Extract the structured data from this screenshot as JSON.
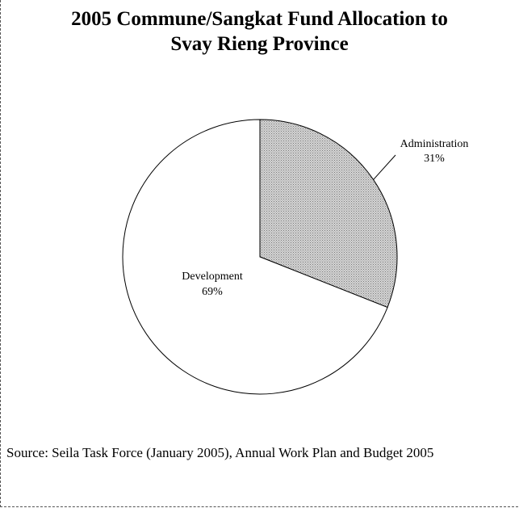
{
  "chart_data": {
    "type": "pie",
    "title": "2005 Commune/Sangkat Fund Allocation to Svay Rieng Province",
    "title_lines": [
      "2005 Commune/Sangkat Fund Allocation to",
      "Svay Rieng Province"
    ],
    "slices": [
      {
        "label": "Administration",
        "value": 31,
        "value_label": "31%",
        "color": "#bdbdbd",
        "pattern": "dotted"
      },
      {
        "label": "Development",
        "value": 69,
        "value_label": "69%",
        "color": "#ffffff",
        "pattern": "none"
      }
    ],
    "start_angle_deg": 0,
    "direction": "clockwise"
  },
  "source_note": "Source: Seila Task Force (January 2005), Annual Work Plan and Budget 2005"
}
